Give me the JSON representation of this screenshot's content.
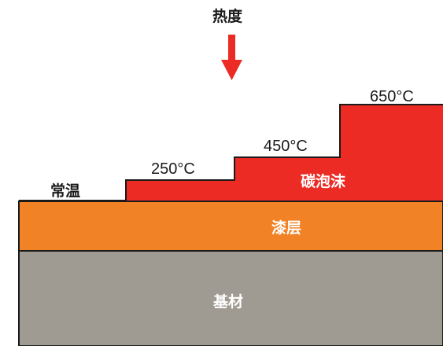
{
  "heat_label": "热度",
  "temperatures": {
    "ambient": "常温",
    "step1": "250°C",
    "step2": "450°C",
    "step3": "650°C"
  },
  "layers": {
    "foam": "碳泡沫",
    "paint": "漆层",
    "base": "基材"
  },
  "colors": {
    "foam": "#ec2b24",
    "paint": "#f28226",
    "base": "#a09b92",
    "arrow": "#ec2b24",
    "outline": "#1a1a1a"
  },
  "icons": {
    "heat_direction": "arrow-down-icon"
  }
}
